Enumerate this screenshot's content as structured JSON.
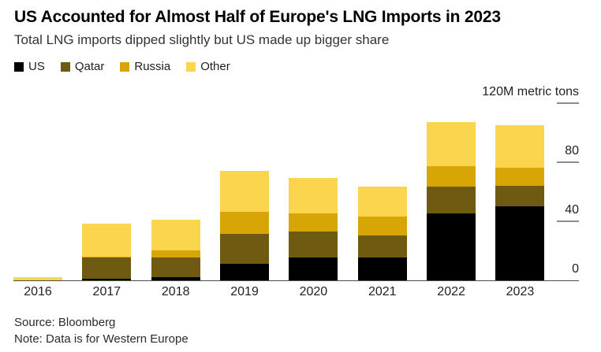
{
  "header": {
    "title": "US Accounted for Almost Half of Europe's LNG Imports in 2023",
    "subtitle": "Total LNG imports dipped slightly but US made up bigger share"
  },
  "chart_data": {
    "type": "bar",
    "stacked": true,
    "categories": [
      "2016",
      "2017",
      "2018",
      "2019",
      "2020",
      "2021",
      "2022",
      "2023"
    ],
    "series": [
      {
        "name": "US",
        "color": "#000000",
        "values": [
          0,
          1,
          2,
          11,
          15,
          15,
          45,
          50
        ]
      },
      {
        "name": "Qatar",
        "color": "#6e5a10",
        "values": [
          0,
          14,
          13,
          20,
          18,
          15,
          18,
          14
        ]
      },
      {
        "name": "Russia",
        "color": "#d7a506",
        "values": [
          0,
          1,
          5,
          15,
          12,
          13,
          14,
          12
        ]
      },
      {
        "name": "Other",
        "color": "#fbd54e",
        "values": [
          2,
          22,
          21,
          28,
          24,
          20,
          30,
          29
        ]
      }
    ],
    "totals": [
      2,
      38,
      41,
      74,
      69,
      63,
      107,
      105
    ],
    "unit_label": "120M metric tons",
    "ylabel": "metric tons (millions)",
    "y_ticks": [
      0,
      40,
      80,
      120
    ],
    "ylim": [
      0,
      120
    ],
    "grid": false,
    "legend_position": "top-left",
    "axis_side": "right"
  },
  "footer": {
    "source": "Source: Bloomberg",
    "note": "Note: Data is for Western Europe"
  },
  "colors": {
    "background": "#ffffff",
    "title_text": "#000000",
    "body_text": "#333333",
    "tick_dash": "#8c8c8c",
    "axis_line": "#4d4d4d"
  }
}
